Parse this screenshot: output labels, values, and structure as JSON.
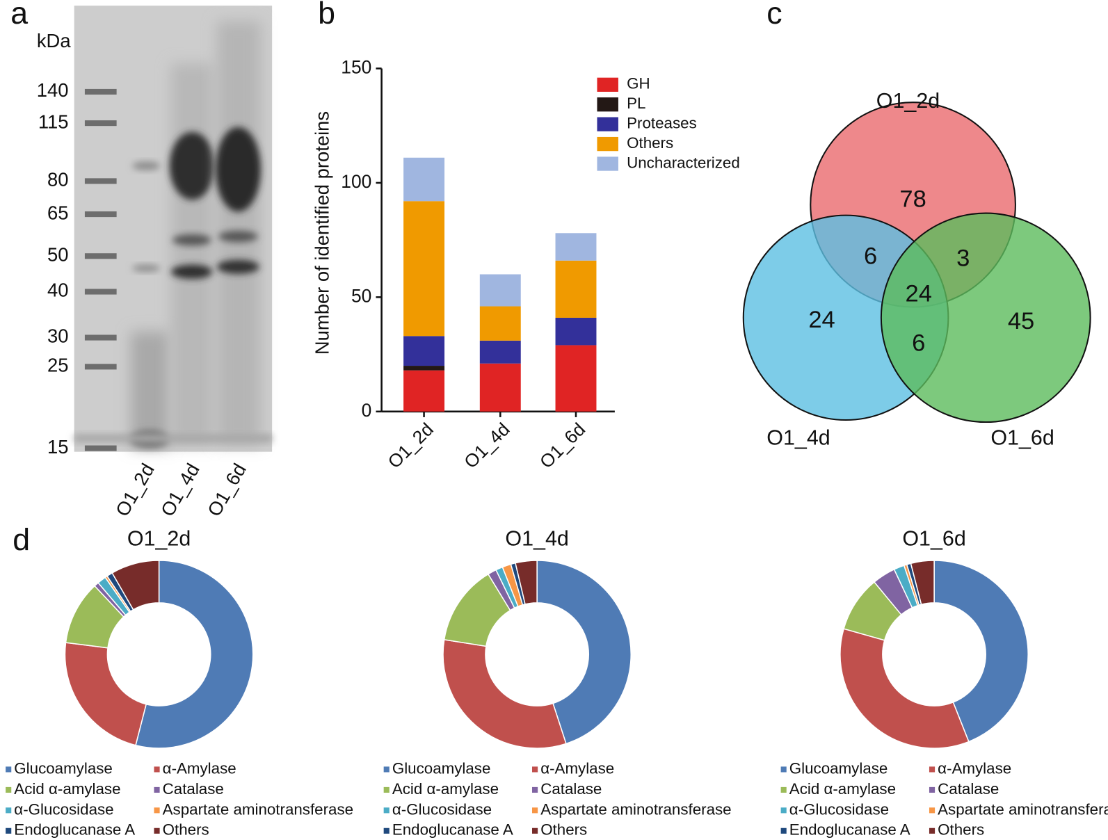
{
  "chart_data": [
    {
      "type": "gel",
      "panel": "a",
      "ylabel": "kDa",
      "log_scale": true,
      "ylim": [
        15,
        140
      ],
      "yticks": [
        140,
        115,
        80,
        65,
        50,
        40,
        30,
        25,
        15
      ],
      "categories": [
        "O1_2d",
        "O1_4d",
        "O1_6d"
      ]
    },
    {
      "type": "bar",
      "panel": "b",
      "stacked": true,
      "ylabel": "Number of identified proteins",
      "categories": [
        "O1_2d",
        "O1_4d",
        "O1_6d"
      ],
      "series": [
        {
          "name": "GH",
          "color": "#e02424",
          "values": [
            18,
            21,
            29
          ]
        },
        {
          "name": "PL",
          "color": "#231815",
          "values": [
            2,
            0,
            0
          ]
        },
        {
          "name": "Proteases",
          "color": "#33309a",
          "values": [
            13,
            10,
            12
          ]
        },
        {
          "name": "Others",
          "color": "#f09a00",
          "values": [
            59,
            15,
            25
          ]
        },
        {
          "name": "Uncharacterized",
          "color": "#a0b6e0",
          "values": [
            19,
            14,
            12
          ]
        }
      ],
      "ylim": [
        0,
        150
      ],
      "yticks": [
        0,
        50,
        100,
        150
      ],
      "legend": "upper right"
    },
    {
      "type": "venn",
      "panel": "c",
      "sets": [
        {
          "name": "O1_2d",
          "color": "#ea6a6e"
        },
        {
          "name": "O1_4d",
          "color": "#5cbfe2"
        },
        {
          "name": "O1_6d",
          "color": "#5cbb5c"
        }
      ],
      "regions": [
        {
          "sets": [
            0
          ],
          "value": 78
        },
        {
          "sets": [
            0,
            1
          ],
          "value": 6
        },
        {
          "sets": [
            0,
            2
          ],
          "value": 3
        },
        {
          "sets": [
            0,
            1,
            2
          ],
          "value": 24
        },
        {
          "sets": [
            1
          ],
          "value": 24
        },
        {
          "sets": [
            1,
            2
          ],
          "value": 6
        },
        {
          "sets": [
            2
          ],
          "value": 45
        }
      ]
    },
    {
      "type": "donut",
      "panel": "d",
      "title": "O1_2d",
      "categories": [
        "Glucoamylase",
        "α-Amylase",
        "Acid α-amylase",
        "Catalase",
        "α-Glucosidase",
        "Aspartate aminotransferase",
        "Endoglucanase A",
        "Others"
      ],
      "colors": [
        "#4f7bb5",
        "#c0504d",
        "#9bbb59",
        "#8064a2",
        "#4bacc6",
        "#f79646",
        "#1f497d",
        "#772c2a"
      ],
      "values": [
        54,
        23,
        11,
        0.8,
        1.5,
        0.4,
        1,
        8.3
      ]
    },
    {
      "type": "donut",
      "title": "O1_4d",
      "categories": [
        "Glucoamylase",
        "α-Amylase",
        "Acid α-amylase",
        "Catalase",
        "α-Glucosidase",
        "Aspartate aminotransferase",
        "Endoglucanase A",
        "Others"
      ],
      "colors": [
        "#4f7bb5",
        "#c0504d",
        "#9bbb59",
        "#8064a2",
        "#4bacc6",
        "#f79646",
        "#1f497d",
        "#772c2a"
      ],
      "values": [
        45,
        32.5,
        13.8,
        1.5,
        1.2,
        1.5,
        0.8,
        3.7
      ]
    },
    {
      "type": "donut",
      "title": "O1_6d",
      "categories": [
        "Glucoamylase",
        "α-Amylase",
        "Acid α-amylase",
        "Catalase",
        "α-Glucosidase",
        "Aspartate aminotransferase",
        "Endoglucanase A",
        "Others"
      ],
      "colors": [
        "#4f7bb5",
        "#c0504d",
        "#9bbb59",
        "#8064a2",
        "#4bacc6",
        "#f79646",
        "#1f497d",
        "#772c2a"
      ],
      "values": [
        44,
        35.4,
        9.6,
        4,
        1.8,
        0.5,
        0.7,
        4
      ]
    }
  ]
}
